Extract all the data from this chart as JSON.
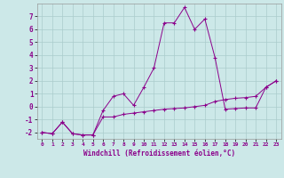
{
  "xlabel": "Windchill (Refroidissement éolien,°C)",
  "x_values": [
    0,
    1,
    2,
    3,
    4,
    5,
    6,
    7,
    8,
    9,
    10,
    11,
    12,
    13,
    14,
    15,
    16,
    17,
    18,
    19,
    20,
    21,
    22,
    23
  ],
  "line1_y": [
    -2.0,
    -2.1,
    -1.2,
    -2.1,
    -2.2,
    -2.2,
    -0.3,
    0.8,
    1.0,
    0.1,
    1.5,
    3.0,
    6.5,
    6.5,
    7.7,
    6.0,
    6.8,
    3.8,
    -0.2,
    -0.15,
    -0.1,
    -0.1,
    1.5,
    2.0
  ],
  "line2_y": [
    -2.0,
    -2.1,
    -1.2,
    -2.1,
    -2.2,
    -2.2,
    -0.8,
    -0.8,
    -0.6,
    -0.5,
    -0.4,
    -0.3,
    -0.2,
    -0.15,
    -0.1,
    0.0,
    0.1,
    0.4,
    0.55,
    0.65,
    0.7,
    0.8,
    1.5,
    2.0
  ],
  "line_color": "#8b008b",
  "bg_color": "#cce8e8",
  "grid_color": "#aacccc",
  "ylim": [
    -2.5,
    8.0
  ],
  "xlim": [
    -0.5,
    23.5
  ],
  "yticks": [
    -2,
    -1,
    0,
    1,
    2,
    3,
    4,
    5,
    6,
    7
  ],
  "xticks": [
    0,
    1,
    2,
    3,
    4,
    5,
    6,
    7,
    8,
    9,
    10,
    11,
    12,
    13,
    14,
    15,
    16,
    17,
    18,
    19,
    20,
    21,
    22,
    23
  ]
}
